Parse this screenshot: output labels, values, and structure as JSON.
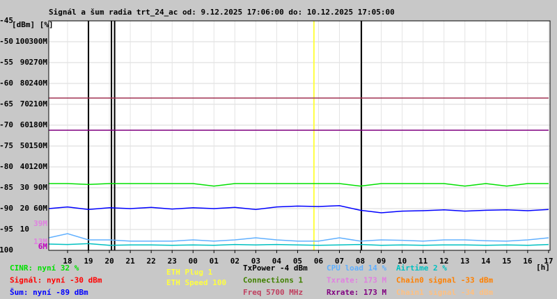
{
  "chart_data": {
    "type": "line",
    "title": "Signál a šum radia trt_24_ac od: 9.12.2025 17:06:00 do: 10.12.2025 17:05:00",
    "y_units": "[dBm] [%]",
    "x_unit": "[h]",
    "xlim": [
      -0.9,
      23.07
    ],
    "ylim": [
      -100,
      -45
    ],
    "grid": true,
    "yticks": [
      -45,
      -50,
      -55,
      -60,
      -65,
      -70,
      -75,
      -80,
      -85,
      -90,
      -95,
      -100
    ],
    "pct_ticks": [
      {
        "value": -50,
        "label": "100"
      },
      {
        "value": -55,
        "label": "90"
      },
      {
        "value": -60,
        "label": "80"
      },
      {
        "value": -65,
        "label": "70"
      },
      {
        "value": -70,
        "label": "60"
      },
      {
        "value": -75,
        "label": "50"
      },
      {
        "value": -80,
        "label": "40"
      },
      {
        "value": -85,
        "label": "30"
      },
      {
        "value": -90,
        "label": "20"
      },
      {
        "value": -95,
        "label": "10"
      }
    ],
    "rate_ticks": [
      {
        "value": -50,
        "label": "300M"
      },
      {
        "value": -55,
        "label": "270M"
      },
      {
        "value": -60,
        "label": "240M"
      },
      {
        "value": -65,
        "label": "210M"
      },
      {
        "value": -70,
        "label": "180M"
      },
      {
        "value": -75,
        "label": "150M"
      },
      {
        "value": -80,
        "label": "120M"
      },
      {
        "value": -85,
        "label": "90M"
      },
      {
        "value": -90,
        "label": "60M"
      }
    ],
    "rate_markers": [
      {
        "value": -93.7,
        "label": "39M",
        "color": "#e080e0"
      },
      {
        "value": -98,
        "label": "13M",
        "color": "#e080e0"
      },
      {
        "value": -99.2,
        "label": "6M",
        "color": "#c000c0"
      }
    ],
    "xticks": [
      {
        "value": 0,
        "label": "18"
      },
      {
        "value": 1,
        "label": "19"
      },
      {
        "value": 2,
        "label": "20"
      },
      {
        "value": 3,
        "label": "21"
      },
      {
        "value": 4,
        "label": "22"
      },
      {
        "value": 5,
        "label": "23"
      },
      {
        "value": 6,
        "label": "00"
      },
      {
        "value": 7,
        "label": "01"
      },
      {
        "value": 8,
        "label": "02"
      },
      {
        "value": 9,
        "label": "03"
      },
      {
        "value": 10,
        "label": "04"
      },
      {
        "value": 11,
        "label": "05"
      },
      {
        "value": 12,
        "label": "06"
      },
      {
        "value": 13,
        "label": "07"
      },
      {
        "value": 14,
        "label": "08"
      },
      {
        "value": 15,
        "label": "09"
      },
      {
        "value": 16,
        "label": "10"
      },
      {
        "value": 17,
        "label": "11"
      },
      {
        "value": 18,
        "label": "12"
      },
      {
        "value": 19,
        "label": "13"
      },
      {
        "value": 20,
        "label": "14"
      },
      {
        "value": 21,
        "label": "15"
      },
      {
        "value": 22,
        "label": "16"
      },
      {
        "value": 23,
        "label": "17"
      }
    ],
    "x": [
      -0.9,
      0,
      1,
      2,
      3,
      4,
      5,
      6,
      7,
      8,
      9,
      10,
      11,
      12,
      13,
      14,
      15,
      16,
      17,
      18,
      19,
      20,
      21,
      22,
      23
    ],
    "series": [
      {
        "name": "Freq",
        "color": "#a03050",
        "values": [
          -63.5,
          -63.5,
          -63.5,
          -63.5,
          -63.5,
          -63.5,
          -63.5,
          -63.5,
          -63.5,
          -63.5,
          -63.5,
          -63.5,
          -63.5,
          -63.5,
          -63.5,
          -63.5,
          -63.5,
          -63.5,
          -63.5,
          -63.5,
          -63.5,
          -63.5,
          -63.5,
          -63.5,
          -63.5
        ]
      },
      {
        "name": "Txrate",
        "color": "#e080e0",
        "values": [
          -71.2,
          -71.2,
          -71.2,
          -71.2,
          -71.2,
          -71.2,
          -71.2,
          -71.2,
          -71.2,
          -71.2,
          -71.2,
          -71.2,
          -71.2,
          -71.2,
          -71.2,
          -71.2,
          -71.2,
          -71.2,
          -71.2,
          -71.2,
          -71.2,
          -71.2,
          -71.2,
          -71.2,
          -71.2
        ]
      },
      {
        "name": "Rxrate",
        "color": "#800080",
        "values": [
          -71.2,
          -71.2,
          -71.2,
          -71.2,
          -71.2,
          -71.2,
          -71.2,
          -71.2,
          -71.2,
          -71.2,
          -71.2,
          -71.2,
          -71.2,
          -71.2,
          -71.2,
          -71.2,
          -71.2,
          -71.2,
          -71.2,
          -71.2,
          -71.2,
          -71.2,
          -71.2,
          -71.2,
          -71.2
        ]
      },
      {
        "name": "CINR",
        "color": "#00e000",
        "values": [
          -84,
          -84,
          -84.2,
          -84,
          -84,
          -84,
          -84,
          -84,
          -84.6,
          -84,
          -84,
          -84,
          -84,
          -84,
          -84,
          -84.6,
          -84,
          -84,
          -84,
          -84,
          -84.6,
          -84,
          -84.6,
          -84,
          -84
        ]
      },
      {
        "name": "Šum",
        "color": "#0000ff",
        "values": [
          -90,
          -89.6,
          -90.2,
          -89.8,
          -90,
          -89.7,
          -90.1,
          -89.8,
          -90,
          -89.7,
          -90.2,
          -89.6,
          -89.4,
          -89.5,
          -89.3,
          -90.4,
          -91,
          -90.6,
          -90.5,
          -90.3,
          -90.6,
          -90.4,
          -90.3,
          -90.5,
          -90.2
        ]
      },
      {
        "name": "CPU load",
        "color": "#60b0ff",
        "values": [
          -97,
          -96,
          -97.5,
          -97.5,
          -97.8,
          -97.8,
          -97.8,
          -97.5,
          -97.8,
          -97.5,
          -97,
          -97.5,
          -97.8,
          -97.8,
          -97,
          -97.8,
          -97.5,
          -97.6,
          -97.8,
          -97.5,
          -97.5,
          -97.7,
          -97.8,
          -97.5,
          -97
        ]
      },
      {
        "name": "Airtime",
        "color": "#00c0c0",
        "values": [
          -98.5,
          -98.6,
          -98.4,
          -98.8,
          -98.7,
          -98.7,
          -98.8,
          -98.7,
          -98.8,
          -98.6,
          -98.7,
          -98.6,
          -98.7,
          -98.8,
          -98.7,
          -98.6,
          -98.8,
          -98.7,
          -98.8,
          -98.7,
          -98.7,
          -98.8,
          -98.7,
          -98.8,
          -98.6
        ]
      }
    ],
    "events": [
      {
        "x": 1.0,
        "color": "#000000"
      },
      {
        "x": 2.1,
        "color": "#000000"
      },
      {
        "x": 2.25,
        "color": "#000000"
      },
      {
        "x": 11.78,
        "color": "#ffff40"
      },
      {
        "x": 14.05,
        "color": "#000000"
      }
    ],
    "legend": [
      [
        {
          "text": "CINR: nyní 32 %",
          "color": "#00e000"
        },
        {
          "text": "Signál: nyní -30 dBm",
          "color": "#ff0000"
        },
        {
          "text": "Šum: nyní -89 dBm",
          "color": "#0000ff"
        }
      ],
      [
        {
          "text": "ETH Plug 1",
          "color": "#ffff40"
        },
        {
          "text": "ETH Speed 100",
          "color": "#ffff40"
        }
      ],
      [
        {
          "text": "TxPower -4 dBm",
          "color": "#000000"
        },
        {
          "text": "Connections 1",
          "color": "#408000"
        },
        {
          "text": "Freq 5700 MHz",
          "color": "#c04060"
        }
      ],
      [
        {
          "text": "CPU load 14 %",
          "color": "#60b0ff"
        },
        {
          "text": "Txrate: 173 M",
          "color": "#e080e0"
        },
        {
          "text": "Rxrate: 173 M",
          "color": "#800080"
        }
      ],
      [
        {
          "text": "Airtime 2 %",
          "color": "#00c0c0"
        },
        {
          "text": "Chain0 signal -33 dBm",
          "color": "#ff8000"
        },
        {
          "text": "Chain1 signal -34 dBm",
          "color": "#ffc080"
        }
      ]
    ]
  }
}
